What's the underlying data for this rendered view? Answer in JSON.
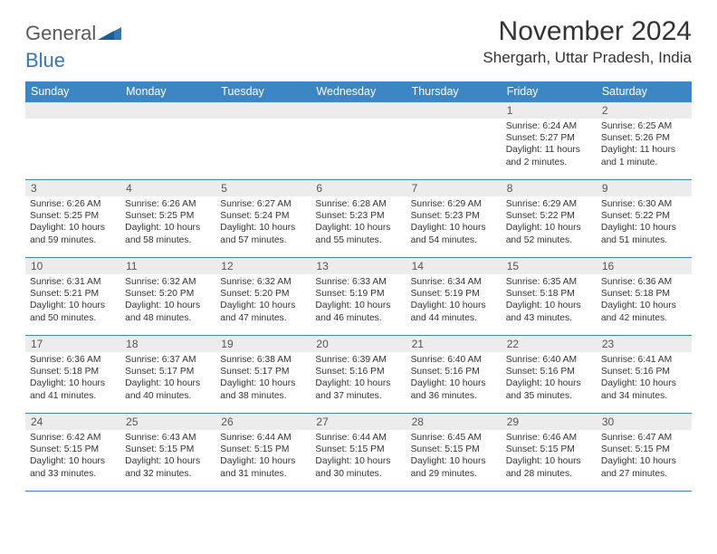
{
  "logo": {
    "text_general": "General",
    "text_blue": "Blue"
  },
  "title": "November 2024",
  "location": "Shergarh, Uttar Pradesh, India",
  "colors": {
    "header_bg": "#3d86c6",
    "header_text": "#ffffff",
    "daynum_bg": "#ececec",
    "row_border": "#3d86c6",
    "logo_blue": "#2f79bb",
    "logo_gray": "#58595b",
    "body_text": "#333333",
    "background": "#ffffff"
  },
  "fonts": {
    "title_size_pt": 22,
    "location_size_pt": 13,
    "dayheader_size_pt": 9.5,
    "daynum_size_pt": 9,
    "cell_size_pt": 8
  },
  "day_headers": [
    "Sunday",
    "Monday",
    "Tuesday",
    "Wednesday",
    "Thursday",
    "Friday",
    "Saturday"
  ],
  "weeks": [
    [
      {
        "num": "",
        "sunrise": "",
        "sunset": "",
        "daylight": ""
      },
      {
        "num": "",
        "sunrise": "",
        "sunset": "",
        "daylight": ""
      },
      {
        "num": "",
        "sunrise": "",
        "sunset": "",
        "daylight": ""
      },
      {
        "num": "",
        "sunrise": "",
        "sunset": "",
        "daylight": ""
      },
      {
        "num": "",
        "sunrise": "",
        "sunset": "",
        "daylight": ""
      },
      {
        "num": "1",
        "sunrise": "Sunrise: 6:24 AM",
        "sunset": "Sunset: 5:27 PM",
        "daylight": "Daylight: 11 hours and 2 minutes."
      },
      {
        "num": "2",
        "sunrise": "Sunrise: 6:25 AM",
        "sunset": "Sunset: 5:26 PM",
        "daylight": "Daylight: 11 hours and 1 minute."
      }
    ],
    [
      {
        "num": "3",
        "sunrise": "Sunrise: 6:26 AM",
        "sunset": "Sunset: 5:25 PM",
        "daylight": "Daylight: 10 hours and 59 minutes."
      },
      {
        "num": "4",
        "sunrise": "Sunrise: 6:26 AM",
        "sunset": "Sunset: 5:25 PM",
        "daylight": "Daylight: 10 hours and 58 minutes."
      },
      {
        "num": "5",
        "sunrise": "Sunrise: 6:27 AM",
        "sunset": "Sunset: 5:24 PM",
        "daylight": "Daylight: 10 hours and 57 minutes."
      },
      {
        "num": "6",
        "sunrise": "Sunrise: 6:28 AM",
        "sunset": "Sunset: 5:23 PM",
        "daylight": "Daylight: 10 hours and 55 minutes."
      },
      {
        "num": "7",
        "sunrise": "Sunrise: 6:29 AM",
        "sunset": "Sunset: 5:23 PM",
        "daylight": "Daylight: 10 hours and 54 minutes."
      },
      {
        "num": "8",
        "sunrise": "Sunrise: 6:29 AM",
        "sunset": "Sunset: 5:22 PM",
        "daylight": "Daylight: 10 hours and 52 minutes."
      },
      {
        "num": "9",
        "sunrise": "Sunrise: 6:30 AM",
        "sunset": "Sunset: 5:22 PM",
        "daylight": "Daylight: 10 hours and 51 minutes."
      }
    ],
    [
      {
        "num": "10",
        "sunrise": "Sunrise: 6:31 AM",
        "sunset": "Sunset: 5:21 PM",
        "daylight": "Daylight: 10 hours and 50 minutes."
      },
      {
        "num": "11",
        "sunrise": "Sunrise: 6:32 AM",
        "sunset": "Sunset: 5:20 PM",
        "daylight": "Daylight: 10 hours and 48 minutes."
      },
      {
        "num": "12",
        "sunrise": "Sunrise: 6:32 AM",
        "sunset": "Sunset: 5:20 PM",
        "daylight": "Daylight: 10 hours and 47 minutes."
      },
      {
        "num": "13",
        "sunrise": "Sunrise: 6:33 AM",
        "sunset": "Sunset: 5:19 PM",
        "daylight": "Daylight: 10 hours and 46 minutes."
      },
      {
        "num": "14",
        "sunrise": "Sunrise: 6:34 AM",
        "sunset": "Sunset: 5:19 PM",
        "daylight": "Daylight: 10 hours and 44 minutes."
      },
      {
        "num": "15",
        "sunrise": "Sunrise: 6:35 AM",
        "sunset": "Sunset: 5:18 PM",
        "daylight": "Daylight: 10 hours and 43 minutes."
      },
      {
        "num": "16",
        "sunrise": "Sunrise: 6:36 AM",
        "sunset": "Sunset: 5:18 PM",
        "daylight": "Daylight: 10 hours and 42 minutes."
      }
    ],
    [
      {
        "num": "17",
        "sunrise": "Sunrise: 6:36 AM",
        "sunset": "Sunset: 5:18 PM",
        "daylight": "Daylight: 10 hours and 41 minutes."
      },
      {
        "num": "18",
        "sunrise": "Sunrise: 6:37 AM",
        "sunset": "Sunset: 5:17 PM",
        "daylight": "Daylight: 10 hours and 40 minutes."
      },
      {
        "num": "19",
        "sunrise": "Sunrise: 6:38 AM",
        "sunset": "Sunset: 5:17 PM",
        "daylight": "Daylight: 10 hours and 38 minutes."
      },
      {
        "num": "20",
        "sunrise": "Sunrise: 6:39 AM",
        "sunset": "Sunset: 5:16 PM",
        "daylight": "Daylight: 10 hours and 37 minutes."
      },
      {
        "num": "21",
        "sunrise": "Sunrise: 6:40 AM",
        "sunset": "Sunset: 5:16 PM",
        "daylight": "Daylight: 10 hours and 36 minutes."
      },
      {
        "num": "22",
        "sunrise": "Sunrise: 6:40 AM",
        "sunset": "Sunset: 5:16 PM",
        "daylight": "Daylight: 10 hours and 35 minutes."
      },
      {
        "num": "23",
        "sunrise": "Sunrise: 6:41 AM",
        "sunset": "Sunset: 5:16 PM",
        "daylight": "Daylight: 10 hours and 34 minutes."
      }
    ],
    [
      {
        "num": "24",
        "sunrise": "Sunrise: 6:42 AM",
        "sunset": "Sunset: 5:15 PM",
        "daylight": "Daylight: 10 hours and 33 minutes."
      },
      {
        "num": "25",
        "sunrise": "Sunrise: 6:43 AM",
        "sunset": "Sunset: 5:15 PM",
        "daylight": "Daylight: 10 hours and 32 minutes."
      },
      {
        "num": "26",
        "sunrise": "Sunrise: 6:44 AM",
        "sunset": "Sunset: 5:15 PM",
        "daylight": "Daylight: 10 hours and 31 minutes."
      },
      {
        "num": "27",
        "sunrise": "Sunrise: 6:44 AM",
        "sunset": "Sunset: 5:15 PM",
        "daylight": "Daylight: 10 hours and 30 minutes."
      },
      {
        "num": "28",
        "sunrise": "Sunrise: 6:45 AM",
        "sunset": "Sunset: 5:15 PM",
        "daylight": "Daylight: 10 hours and 29 minutes."
      },
      {
        "num": "29",
        "sunrise": "Sunrise: 6:46 AM",
        "sunset": "Sunset: 5:15 PM",
        "daylight": "Daylight: 10 hours and 28 minutes."
      },
      {
        "num": "30",
        "sunrise": "Sunrise: 6:47 AM",
        "sunset": "Sunset: 5:15 PM",
        "daylight": "Daylight: 10 hours and 27 minutes."
      }
    ]
  ]
}
